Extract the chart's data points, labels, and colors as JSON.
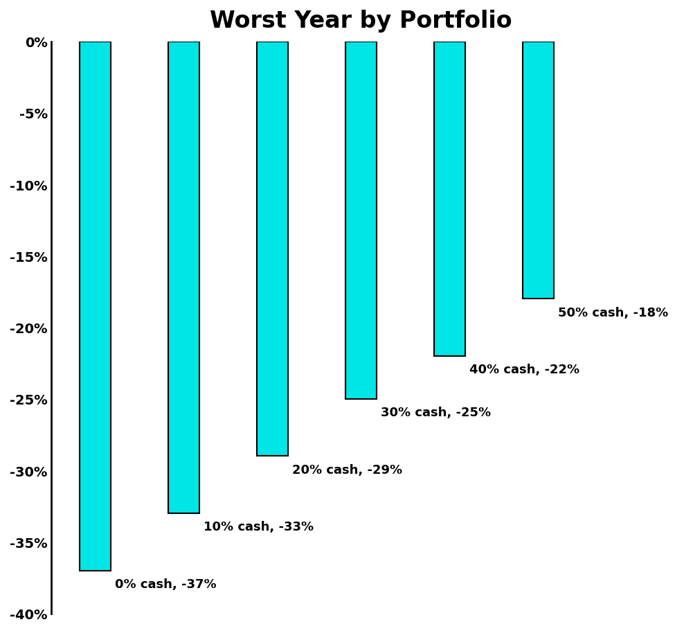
{
  "title": "Worst Year by Portfolio",
  "categories": [
    "0% cash",
    "10% cash",
    "20% cash",
    "30% cash",
    "40% cash",
    "50% cash"
  ],
  "values": [
    -37,
    -33,
    -29,
    -25,
    -22,
    -18
  ],
  "bar_color": "#00E5E5",
  "bar_edgecolor": "#000000",
  "bar_linewidth": 1.5,
  "labels": [
    "0% cash, -37%",
    "10% cash, -33%",
    "20% cash, -29%",
    "30% cash, -25%",
    "40% cash, -22%",
    "50% cash, -18%"
  ],
  "ylim": [
    -40,
    0
  ],
  "yticks": [
    0,
    -5,
    -10,
    -15,
    -20,
    -25,
    -30,
    -35,
    -40
  ],
  "ytick_labels": [
    "0%",
    "-5%",
    "-10%",
    "-15%",
    "-20%",
    "-25%",
    "-30%",
    "-35%",
    "-40%"
  ],
  "title_fontsize": 24,
  "label_fontsize": 13,
  "ytick_fontsize": 14,
  "background_color": "#ffffff",
  "label_fontweight": "bold",
  "bar_width": 0.35,
  "bar_positions": [
    0,
    1,
    2,
    3,
    4,
    5
  ],
  "xlim_left": -0.5,
  "xlim_right": 6.5
}
